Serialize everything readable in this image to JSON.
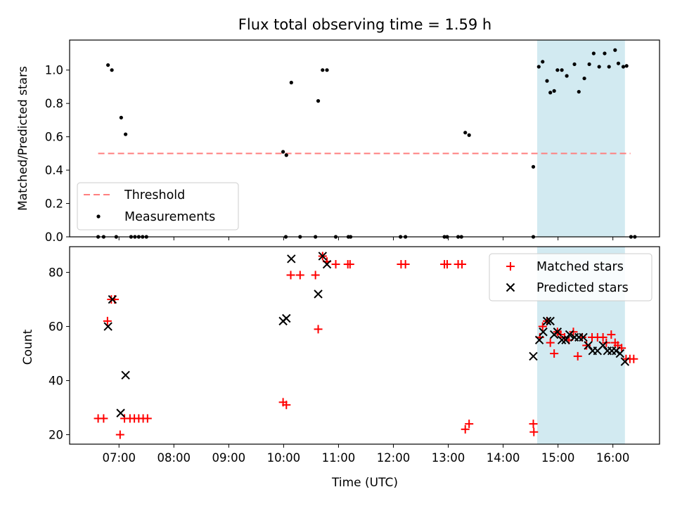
{
  "chart_data": {
    "title": "Flux total observing time = 1.59 h",
    "xlabel": "Time (UTC)",
    "x_unit": "hours UTC",
    "xlim": [
      6.1,
      16.85
    ],
    "xticks": [
      7,
      8,
      9,
      10,
      11,
      12,
      13,
      14,
      15,
      16
    ],
    "xtick_labels": [
      "07:00",
      "08:00",
      "09:00",
      "10:00",
      "11:00",
      "12:00",
      "13:00",
      "14:00",
      "15:00",
      "16:00"
    ],
    "shaded_span": [
      14.62,
      16.22
    ],
    "shade_color": "#add8e6",
    "panels": [
      {
        "type": "scatter",
        "ylabel": "Matched/Predicted stars",
        "ylim": [
          0,
          1.18
        ],
        "yticks": [
          0.0,
          0.2,
          0.4,
          0.6,
          0.8,
          1.0
        ],
        "ytick_labels": [
          "0.0",
          "0.2",
          "0.4",
          "0.6",
          "0.8",
          "1.0"
        ],
        "legend_position": "lower-left",
        "threshold": {
          "name": "Threshold",
          "value": 0.5,
          "x_range": [
            6.62,
            16.32
          ],
          "color": "#ff7f7f"
        },
        "series": [
          {
            "name": "Measurements",
            "marker": "dot",
            "color": "#000000",
            "points": [
              [
                6.62,
                0
              ],
              [
                6.72,
                0
              ],
              [
                6.8,
                1.03
              ],
              [
                6.87,
                1.0
              ],
              [
                6.95,
                0
              ],
              [
                7.04,
                0.715
              ],
              [
                7.12,
                0.615
              ],
              [
                7.22,
                0
              ],
              [
                7.29,
                0
              ],
              [
                7.36,
                0
              ],
              [
                7.43,
                0
              ],
              [
                7.5,
                0
              ],
              [
                9.99,
                0.51
              ],
              [
                10.05,
                0.49
              ],
              [
                10.04,
                0
              ],
              [
                10.14,
                0.925
              ],
              [
                10.3,
                0
              ],
              [
                10.58,
                0
              ],
              [
                10.63,
                0.815
              ],
              [
                10.71,
                1.0
              ],
              [
                10.79,
                1.0
              ],
              [
                10.95,
                0
              ],
              [
                11.18,
                0
              ],
              [
                11.22,
                0
              ],
              [
                12.13,
                0
              ],
              [
                12.22,
                0
              ],
              [
                12.93,
                0
              ],
              [
                12.98,
                0
              ],
              [
                13.18,
                0
              ],
              [
                13.24,
                0
              ],
              [
                13.31,
                0.625
              ],
              [
                13.38,
                0.61
              ],
              [
                14.55,
                0.42
              ],
              [
                14.55,
                0
              ],
              [
                14.65,
                1.02
              ],
              [
                14.72,
                1.05
              ],
              [
                14.8,
                0.935
              ],
              [
                14.86,
                0.865
              ],
              [
                14.93,
                0.875
              ],
              [
                14.99,
                1.0
              ],
              [
                15.07,
                1.0
              ],
              [
                15.16,
                0.965
              ],
              [
                15.3,
                1.035
              ],
              [
                15.38,
                0.87
              ],
              [
                15.48,
                0.95
              ],
              [
                15.57,
                1.035
              ],
              [
                15.65,
                1.1
              ],
              [
                15.75,
                1.02
              ],
              [
                15.85,
                1.1
              ],
              [
                15.93,
                1.02
              ],
              [
                16.04,
                1.12
              ],
              [
                16.1,
                1.04
              ],
              [
                16.19,
                1.02
              ],
              [
                16.25,
                1.025
              ],
              [
                16.33,
                0
              ],
              [
                16.4,
                0
              ]
            ]
          }
        ]
      },
      {
        "type": "scatter",
        "ylabel": "Count",
        "ylim": [
          16.5,
          89.5
        ],
        "yticks": [
          20,
          40,
          60,
          80
        ],
        "ytick_labels": [
          "20",
          "40",
          "60",
          "80"
        ],
        "legend_position": "upper-right",
        "series": [
          {
            "name": "Matched stars",
            "marker": "plus",
            "color": "#ff0000",
            "points": [
              [
                6.62,
                26
              ],
              [
                6.72,
                26
              ],
              [
                6.79,
                62
              ],
              [
                6.86,
                70
              ],
              [
                6.92,
                70
              ],
              [
                7.02,
                20
              ],
              [
                7.1,
                26
              ],
              [
                7.2,
                26
              ],
              [
                7.28,
                26
              ],
              [
                7.36,
                26
              ],
              [
                7.44,
                26
              ],
              [
                7.52,
                26
              ],
              [
                9.99,
                32
              ],
              [
                10.05,
                31
              ],
              [
                10.13,
                79
              ],
              [
                10.3,
                79
              ],
              [
                10.58,
                79
              ],
              [
                10.63,
                59
              ],
              [
                10.71,
                86
              ],
              [
                10.79,
                84
              ],
              [
                10.95,
                83
              ],
              [
                11.17,
                83
              ],
              [
                11.21,
                83
              ],
              [
                12.14,
                83
              ],
              [
                12.22,
                83
              ],
              [
                12.93,
                83
              ],
              [
                12.98,
                83
              ],
              [
                13.18,
                83
              ],
              [
                13.25,
                83
              ],
              [
                13.31,
                22
              ],
              [
                13.38,
                24
              ],
              [
                14.55,
                24
              ],
              [
                14.56,
                21
              ],
              [
                14.67,
                56
              ],
              [
                14.72,
                60
              ],
              [
                14.8,
                62
              ],
              [
                14.86,
                54
              ],
              [
                14.93,
                50
              ],
              [
                14.99,
                58
              ],
              [
                15.05,
                57
              ],
              [
                15.12,
                56
              ],
              [
                15.2,
                55
              ],
              [
                15.28,
                58
              ],
              [
                15.36,
                49
              ],
              [
                15.44,
                56
              ],
              [
                15.52,
                53
              ],
              [
                15.62,
                56
              ],
              [
                15.72,
                56
              ],
              [
                15.82,
                56
              ],
              [
                15.88,
                54
              ],
              [
                15.97,
                57
              ],
              [
                16.04,
                54
              ],
              [
                16.09,
                53
              ],
              [
                16.16,
                52
              ],
              [
                16.24,
                48
              ],
              [
                16.31,
                48
              ],
              [
                16.38,
                48
              ]
            ]
          },
          {
            "name": "Predicted stars",
            "marker": "x",
            "color": "#000000",
            "points": [
              [
                6.8,
                60
              ],
              [
                6.88,
                70
              ],
              [
                7.03,
                28
              ],
              [
                7.12,
                42
              ],
              [
                9.99,
                62
              ],
              [
                10.05,
                63
              ],
              [
                10.14,
                85
              ],
              [
                10.63,
                72
              ],
              [
                10.71,
                86
              ],
              [
                10.79,
                83
              ],
              [
                14.55,
                49
              ],
              [
                14.66,
                55
              ],
              [
                14.73,
                58
              ],
              [
                14.8,
                62
              ],
              [
                14.86,
                62
              ],
              [
                14.93,
                57
              ],
              [
                14.99,
                58
              ],
              [
                15.07,
                55
              ],
              [
                15.14,
                55
              ],
              [
                15.21,
                57
              ],
              [
                15.3,
                56
              ],
              [
                15.38,
                56
              ],
              [
                15.46,
                56
              ],
              [
                15.55,
                53
              ],
              [
                15.63,
                51
              ],
              [
                15.72,
                51
              ],
              [
                15.82,
                53
              ],
              [
                15.9,
                51
              ],
              [
                15.98,
                51
              ],
              [
                16.06,
                51
              ],
              [
                16.13,
                50
              ],
              [
                16.22,
                47
              ]
            ]
          }
        ]
      }
    ]
  }
}
